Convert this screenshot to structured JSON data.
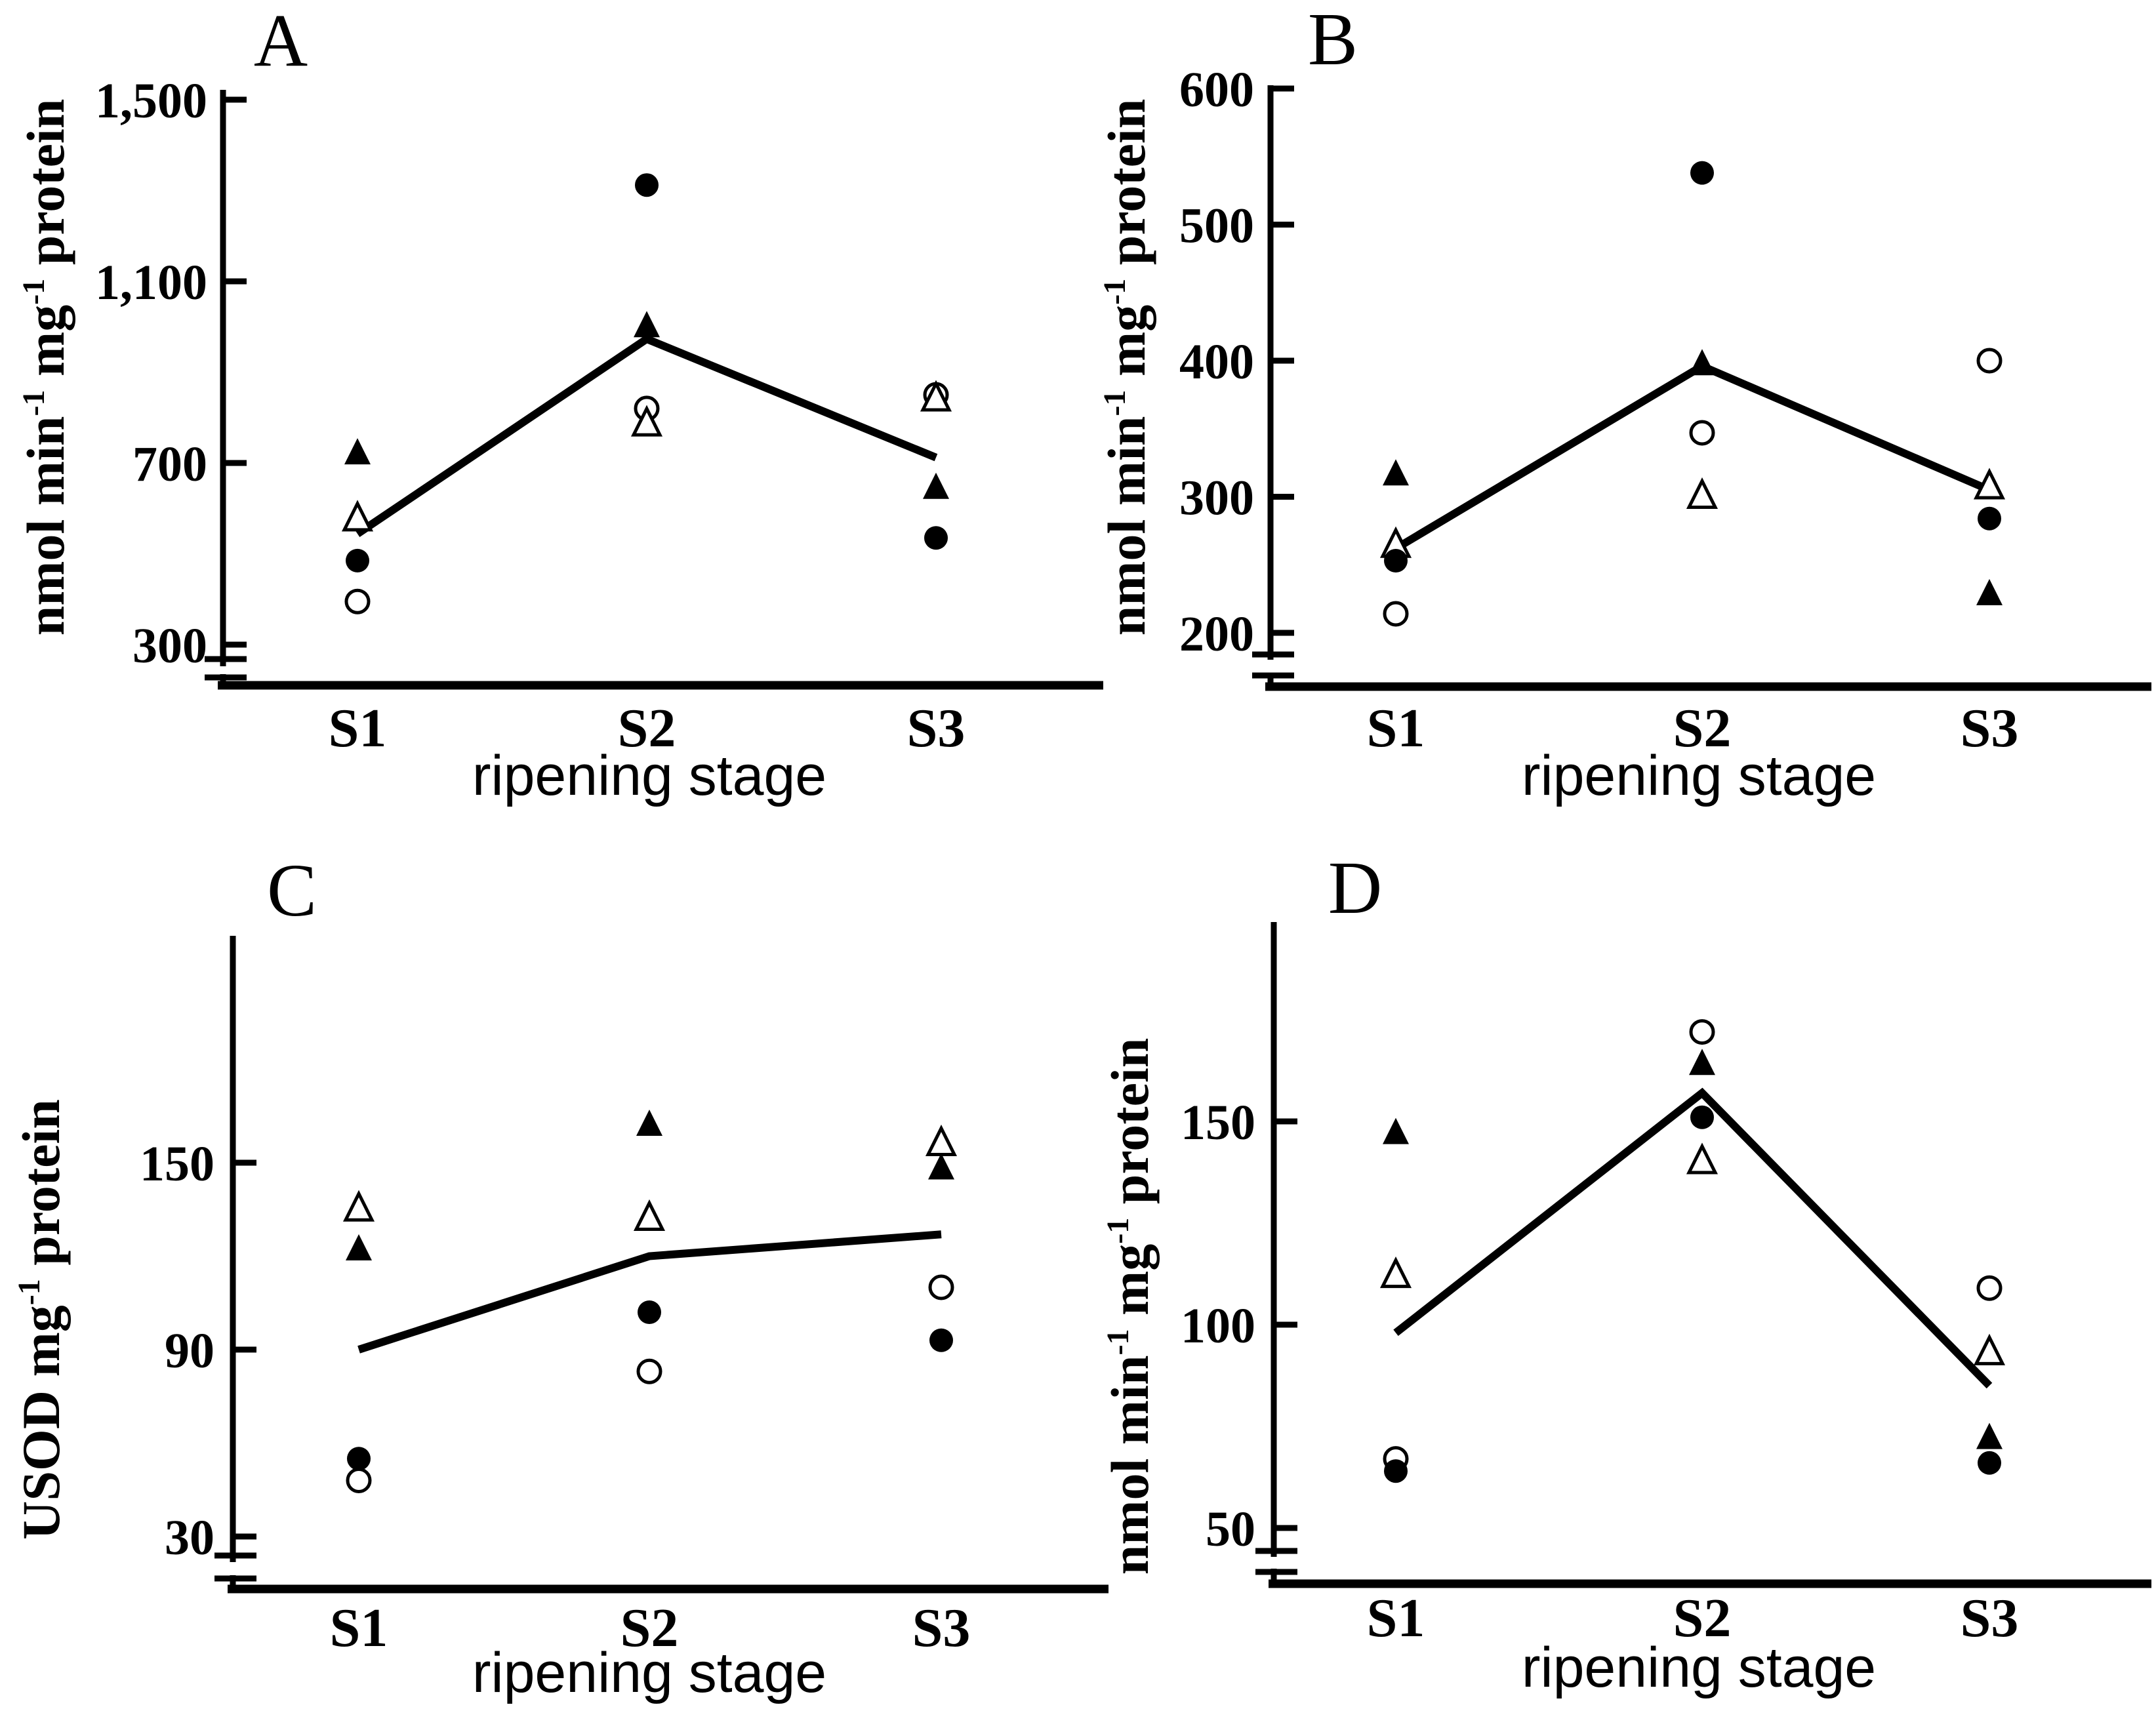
{
  "figure": {
    "background_color": "#ffffff",
    "ink_color": "#000000",
    "layout_note": "2x2 grid of panels",
    "panel_labels": [
      "A",
      "B",
      "C",
      "D"
    ]
  },
  "chart_data": [
    {
      "panel": "A",
      "type": "scatter",
      "title": "A",
      "xlabel": "ripening stage",
      "ylabel": "nmol min-1 mg-1 protein",
      "ylabel_rich": [
        {
          "t": "nmol min"
        },
        {
          "t": "-1",
          "sup": true
        },
        {
          "t": " mg"
        },
        {
          "t": "-1",
          "sup": true
        },
        {
          "t": " protein"
        }
      ],
      "categories": [
        "S1",
        "S2",
        "S3"
      ],
      "yticks": [
        {
          "label": "300",
          "value": 300
        },
        {
          "label": "700",
          "value": 700
        },
        {
          "label": "1,100",
          "value": 1100
        },
        {
          "label": "1,500",
          "value": 1500
        }
      ],
      "ylim": [
        300,
        1520
      ],
      "axis_break": true,
      "grid": false,
      "legend": "none",
      "series": [
        {
          "name": "open circle",
          "marker": "open-circle",
          "values": [
            395,
            820,
            850
          ]
        },
        {
          "name": "open triangle",
          "marker": "open-triangle",
          "values": [
            576,
            785,
            840
          ]
        },
        {
          "name": "filled circle",
          "marker": "filled-circle",
          "values": [
            485,
            1312,
            535
          ]
        },
        {
          "name": "filled triangle",
          "marker": "filled-triangle",
          "values": [
            720,
            1000,
            644
          ]
        }
      ],
      "mean_line": [
        544,
        973,
        712
      ]
    },
    {
      "panel": "B",
      "type": "scatter",
      "title": "B",
      "xlabel": "ripening stage",
      "ylabel": "nmol min-1 mg-1 protein",
      "ylabel_rich": [
        {
          "t": "nmol min"
        },
        {
          "t": "-1",
          "sup": true
        },
        {
          "t": " mg"
        },
        {
          "t": "-1",
          "sup": true
        },
        {
          "t": " protein"
        }
      ],
      "categories": [
        "S1",
        "S2",
        "S3"
      ],
      "yticks": [
        {
          "label": "200",
          "value": 200
        },
        {
          "label": "300",
          "value": 300
        },
        {
          "label": "400",
          "value": 400
        },
        {
          "label": "500",
          "value": 500
        },
        {
          "label": "600",
          "value": 600
        }
      ],
      "ylim": [
        200,
        602
      ],
      "axis_break": true,
      "grid": false,
      "legend": "none",
      "series": [
        {
          "name": "open circle",
          "marker": "open-circle",
          "values": [
            214,
            347,
            400
          ]
        },
        {
          "name": "open triangle",
          "marker": "open-triangle",
          "values": [
            264,
            300,
            307
          ]
        },
        {
          "name": "filled circle",
          "marker": "filled-circle",
          "values": [
            253,
            538,
            284
          ]
        },
        {
          "name": "filled triangle",
          "marker": "filled-triangle",
          "values": [
            316,
            397,
            228
          ]
        }
      ],
      "mean_line": [
        262,
        396,
        305
      ]
    },
    {
      "panel": "C",
      "type": "scatter",
      "title": "C",
      "xlabel": "ripening stage",
      "ylabel": "USOD mg-1 protein",
      "ylabel_rich": [
        {
          "t": "USOD mg"
        },
        {
          "t": "-1",
          "sup": true
        },
        {
          "t": " protein"
        }
      ],
      "categories": [
        "S1",
        "S2",
        "S3"
      ],
      "yticks": [
        {
          "label": "30",
          "value": 30
        },
        {
          "label": "90",
          "value": 90
        },
        {
          "label": "150",
          "value": 150
        }
      ],
      "ylim": [
        30,
        223
      ],
      "axis_break": true,
      "grid": false,
      "legend": "none",
      "series": [
        {
          "name": "open circle",
          "marker": "open-circle",
          "values": [
            48,
            83,
            110
          ]
        },
        {
          "name": "open triangle",
          "marker": "open-triangle",
          "values": [
            135,
            132,
            156
          ]
        },
        {
          "name": "filled circle",
          "marker": "filled-circle",
          "values": [
            55,
            102,
            93
          ]
        },
        {
          "name": "filled triangle",
          "marker": "filled-triangle",
          "values": [
            122,
            162,
            148
          ]
        }
      ],
      "mean_line": [
        90,
        120,
        127
      ]
    },
    {
      "panel": "D",
      "type": "scatter",
      "title": "D",
      "xlabel": "ripening stage",
      "ylabel": "nmol min-1 mg-1 protein",
      "ylabel_rich": [
        {
          "t": "nmol min"
        },
        {
          "t": "-1",
          "sup": true
        },
        {
          "t": " mg"
        },
        {
          "t": "-1",
          "sup": true
        },
        {
          "t": " protein"
        }
      ],
      "categories": [
        "S1",
        "S2",
        "S3"
      ],
      "yticks": [
        {
          "label": "50",
          "value": 50
        },
        {
          "label": "100",
          "value": 100
        },
        {
          "label": "150",
          "value": 150
        }
      ],
      "ylim": [
        50,
        196
      ],
      "axis_break": true,
      "grid": false,
      "legend": "none",
      "series": [
        {
          "name": "open circle",
          "marker": "open-circle",
          "values": [
            67,
            172,
            109
          ]
        },
        {
          "name": "open triangle",
          "marker": "open-triangle",
          "values": [
            112,
            140,
            93
          ]
        },
        {
          "name": "filled circle",
          "marker": "filled-circle",
          "values": [
            64,
            151,
            66
          ]
        },
        {
          "name": "filled triangle",
          "marker": "filled-triangle",
          "values": [
            147,
            164,
            72
          ]
        }
      ],
      "mean_line": [
        98,
        157,
        85
      ]
    }
  ]
}
